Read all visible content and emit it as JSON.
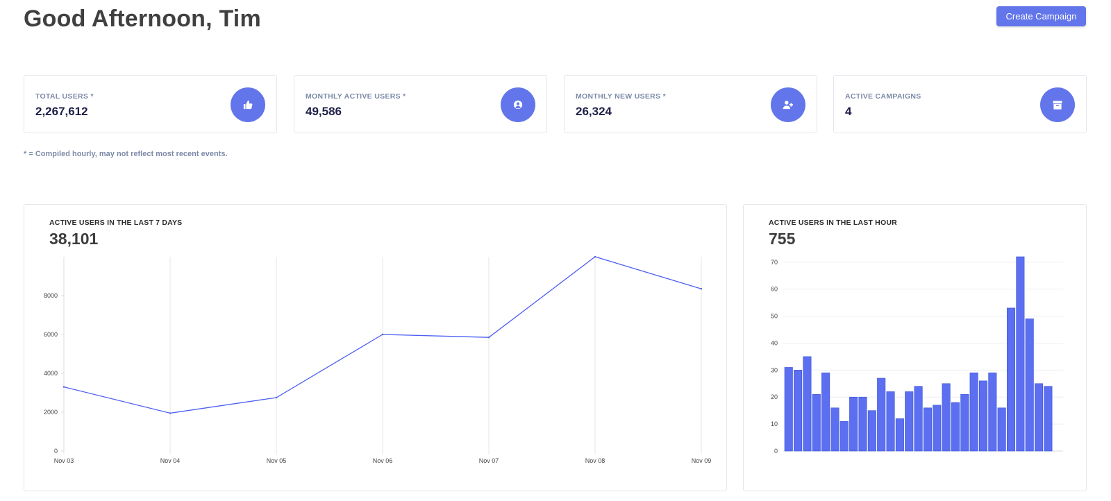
{
  "header": {
    "greeting": "Good Afternoon, Tim",
    "create_label": "Create Campaign"
  },
  "stats": [
    {
      "label": "TOTAL USERS *",
      "value": "2,267,612",
      "icon": "thumbs-up-icon"
    },
    {
      "label": "MONTHLY ACTIVE USERS *",
      "value": "49,586",
      "icon": "user-circle-icon"
    },
    {
      "label": "MONTHLY NEW USERS *",
      "value": "26,324",
      "icon": "user-plus-icon"
    },
    {
      "label": "ACTIVE CAMPAIGNS",
      "value": "4",
      "icon": "archive-icon"
    }
  ],
  "footnote": "* = Compiled hourly, may not reflect most recent events.",
  "colors": {
    "accent": "#6275ea",
    "bar": "#5b6ff0",
    "line": "#4b5ff2"
  },
  "chart_data": [
    {
      "type": "line",
      "title": "ACTIVE USERS IN THE LAST 7 DAYS",
      "total": "38,101",
      "x": [
        "Nov 03",
        "Nov 04",
        "Nov 05",
        "Nov 06",
        "Nov 07",
        "Nov 08",
        "Nov 09"
      ],
      "values": [
        3300,
        1950,
        2750,
        6000,
        5850,
        10000,
        8350
      ],
      "yticks": [
        0,
        2000,
        4000,
        6000,
        8000
      ],
      "ylim": [
        0,
        10000
      ],
      "grid": "vertical"
    },
    {
      "type": "bar",
      "title": "ACTIVE USERS IN THE LAST HOUR",
      "total": "755",
      "values": [
        31,
        30,
        35,
        21,
        29,
        16,
        11,
        20,
        20,
        15,
        27,
        22,
        12,
        22,
        24,
        16,
        17,
        25,
        18,
        21,
        29,
        26,
        29,
        16,
        53,
        72,
        49,
        25,
        24
      ],
      "yticks": [
        0,
        10,
        20,
        30,
        40,
        50,
        60,
        70
      ],
      "ylim": [
        0,
        72
      ],
      "grid": "horizontal"
    }
  ]
}
